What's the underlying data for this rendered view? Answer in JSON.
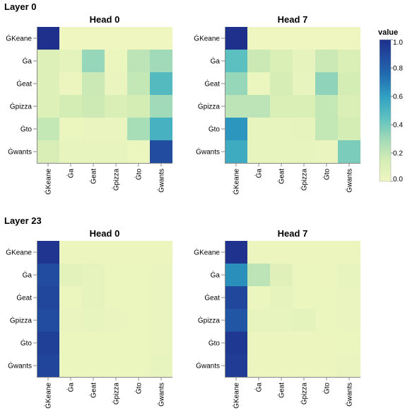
{
  "chart_data": {
    "type": "heatmap",
    "tokens": [
      "ĠKeane",
      "Ġa",
      "Ġeat",
      "Ġpizza",
      "Ġto",
      "Ġwants"
    ],
    "color_scale": {
      "scheme": "yellowgreenblue",
      "domain": [
        0.0,
        1.0
      ],
      "legend_title": "value",
      "legend_ticks": [
        "1.0",
        "0.8",
        "0.6",
        "0.4",
        "0.2",
        "0.0"
      ],
      "legend_placement": "top-right"
    },
    "layers": [
      {
        "label": "Layer 0",
        "heads": [
          {
            "label": "Head 0",
            "matrix": [
              [
                1.0,
                0.0,
                0.0,
                0.0,
                0.0,
                0.0
              ],
              [
                0.1,
                0.06,
                0.32,
                0.02,
                0.22,
                0.3
              ],
              [
                0.1,
                0.01,
                0.18,
                0.03,
                0.2,
                0.48
              ],
              [
                0.1,
                0.15,
                0.17,
                0.12,
                0.15,
                0.3
              ],
              [
                0.2,
                0.02,
                0.03,
                0.03,
                0.28,
                0.52
              ],
              [
                0.13,
                0.04,
                0.04,
                0.04,
                0.02,
                0.88
              ]
            ]
          },
          {
            "label": "Head 7",
            "matrix": [
              [
                1.0,
                0.0,
                0.0,
                0.0,
                0.0,
                0.0
              ],
              [
                0.45,
                0.18,
                0.12,
                0.05,
                0.18,
                0.12
              ],
              [
                0.32,
                0.02,
                0.14,
                0.04,
                0.34,
                0.15
              ],
              [
                0.22,
                0.22,
                0.12,
                0.12,
                0.2,
                0.12
              ],
              [
                0.63,
                0.04,
                0.04,
                0.05,
                0.2,
                0.15
              ],
              [
                0.55,
                0.04,
                0.04,
                0.04,
                0.03,
                0.38
              ]
            ]
          }
        ]
      },
      {
        "label": "Layer 23",
        "heads": [
          {
            "label": "Head 0",
            "matrix": [
              [
                0.98,
                0.01,
                0.01,
                0.01,
                0.01,
                0.01
              ],
              [
                0.88,
                0.07,
                0.05,
                0.02,
                0.02,
                0.03
              ],
              [
                0.9,
                0.02,
                0.05,
                0.02,
                0.02,
                0.03
              ],
              [
                0.88,
                0.03,
                0.04,
                0.03,
                0.02,
                0.03
              ],
              [
                0.93,
                0.02,
                0.02,
                0.02,
                0.02,
                0.03
              ],
              [
                0.91,
                0.02,
                0.02,
                0.02,
                0.02,
                0.04
              ]
            ]
          },
          {
            "label": "Head 7",
            "matrix": [
              [
                0.99,
                0.01,
                0.01,
                0.01,
                0.01,
                0.01
              ],
              [
                0.65,
                0.22,
                0.09,
                0.02,
                0.01,
                0.04
              ],
              [
                0.9,
                0.02,
                0.05,
                0.02,
                0.02,
                0.03
              ],
              [
                0.84,
                0.04,
                0.04,
                0.06,
                0.02,
                0.03
              ],
              [
                0.96,
                0.01,
                0.01,
                0.01,
                0.01,
                0.02
              ],
              [
                0.95,
                0.01,
                0.01,
                0.01,
                0.01,
                0.03
              ]
            ]
          }
        ]
      }
    ]
  }
}
